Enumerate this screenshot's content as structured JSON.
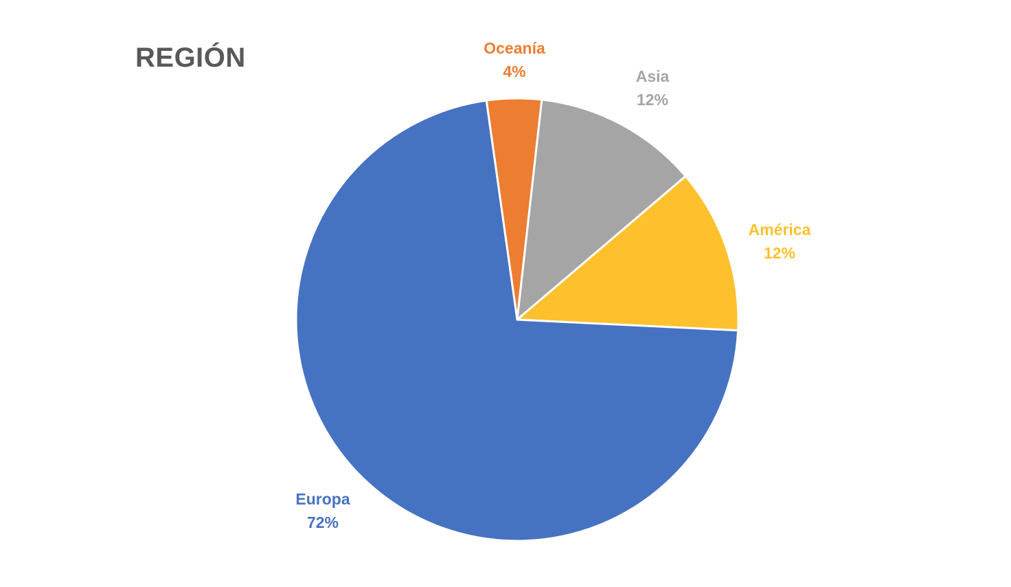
{
  "chart_data": {
    "type": "pie",
    "title": "REGIÓN",
    "categories": [
      "Oceanía",
      "Asia",
      "América",
      "Europa"
    ],
    "values": [
      4,
      12,
      12,
      72
    ],
    "value_labels": [
      "4%",
      "12%",
      "12%",
      "72%"
    ],
    "colors": [
      "#ED7D31",
      "#A5A5A5",
      "#FFC02E",
      "#4672C2"
    ],
    "start_angle_deg": -8,
    "direction": "clockwise",
    "legend": "none",
    "data_labels": "outside"
  }
}
